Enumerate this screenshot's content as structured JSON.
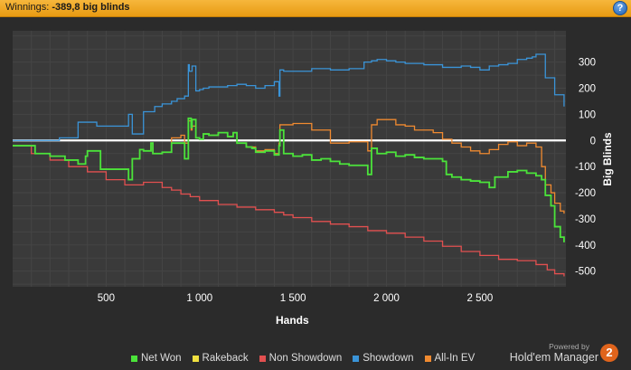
{
  "header": {
    "label": "Winnings:",
    "value": "-389,8 big blinds",
    "help_icon": "question-mark-icon"
  },
  "chart_data": {
    "type": "line",
    "xlabel": "Hands",
    "ylabel": "Big Blinds",
    "xlim": [
      0,
      2960
    ],
    "ylim": [
      -560,
      420
    ],
    "x_ticks": [
      500,
      1000,
      1500,
      2000,
      2500
    ],
    "x_tick_labels": [
      "500",
      "1 000",
      "1 500",
      "2 000",
      "2 500"
    ],
    "y_ticks": [
      300,
      200,
      100,
      0,
      -100,
      -200,
      -300,
      -400,
      -500
    ],
    "y_tick_labels": [
      "300",
      "200",
      "100",
      "0",
      "-100",
      "-200",
      "-300",
      "-400",
      "-500"
    ],
    "grid": true,
    "legend_position": "bottom",
    "series": [
      {
        "name": "Net Won",
        "color": "#4be33a",
        "x": [
          0,
          120,
          200,
          280,
          350,
          390,
          400,
          470,
          620,
          640,
          680,
          700,
          740,
          750,
          800,
          850,
          900,
          920,
          940,
          955,
          960,
          980,
          1000,
          1020,
          1050,
          1100,
          1150,
          1180,
          1200,
          1250,
          1280,
          1300,
          1350,
          1400,
          1425,
          1430,
          1450,
          1500,
          1550,
          1600,
          1650,
          1700,
          1750,
          1800,
          1850,
          1900,
          1920,
          1950,
          2000,
          2050,
          2100,
          2150,
          2200,
          2250,
          2300,
          2320,
          2350,
          2400,
          2450,
          2500,
          2550,
          2580,
          2600,
          2650,
          2700,
          2750,
          2800,
          2830,
          2850,
          2880,
          2900,
          2930,
          2950
        ],
        "y": [
          -20,
          -50,
          -60,
          -75,
          -90,
          -60,
          -40,
          -110,
          -150,
          -70,
          -35,
          -40,
          -10,
          -50,
          -45,
          -10,
          -10,
          -70,
          85,
          50,
          80,
          10,
          5,
          25,
          20,
          30,
          15,
          30,
          -10,
          -25,
          -30,
          -45,
          -40,
          -55,
          -20,
          40,
          -50,
          -60,
          -55,
          -75,
          -70,
          -80,
          -90,
          -95,
          -95,
          -130,
          -30,
          -50,
          -45,
          -60,
          -55,
          -65,
          -70,
          -70,
          -80,
          -130,
          -140,
          -150,
          -155,
          -160,
          -180,
          -140,
          -140,
          -120,
          -115,
          -125,
          -135,
          -150,
          -210,
          -250,
          -330,
          -370,
          -390
        ]
      },
      {
        "name": "Rakeback",
        "color": "#f0e040",
        "x": [
          0,
          2950
        ],
        "y": [
          0,
          0
        ]
      },
      {
        "name": "Non Showdown",
        "color": "#e25050",
        "x": [
          0,
          100,
          200,
          300,
          400,
          500,
          600,
          700,
          800,
          850,
          900,
          950,
          1000,
          1100,
          1200,
          1300,
          1400,
          1450,
          1500,
          1600,
          1700,
          1800,
          1900,
          2000,
          2100,
          2200,
          2300,
          2400,
          2500,
          2600,
          2700,
          2800,
          2860,
          2900,
          2950
        ],
        "y": [
          -20,
          -50,
          -75,
          -100,
          -120,
          -150,
          -170,
          -160,
          -180,
          -190,
          -205,
          -215,
          -230,
          -245,
          -255,
          -265,
          -275,
          -285,
          -295,
          -310,
          -320,
          -330,
          -345,
          -355,
          -370,
          -385,
          -405,
          -425,
          -440,
          -455,
          -460,
          -475,
          -495,
          -510,
          -520
        ]
      },
      {
        "name": "Showdown",
        "color": "#3a94d8",
        "x": [
          0,
          200,
          250,
          350,
          450,
          620,
          640,
          700,
          760,
          800,
          850,
          880,
          920,
          940,
          945,
          960,
          980,
          1000,
          1020,
          1050,
          1100,
          1150,
          1200,
          1250,
          1300,
          1350,
          1400,
          1425,
          1430,
          1450,
          1500,
          1600,
          1700,
          1800,
          1880,
          1920,
          1950,
          2000,
          2050,
          2100,
          2200,
          2300,
          2400,
          2450,
          2500,
          2550,
          2600,
          2650,
          2700,
          2750,
          2780,
          2800,
          2850,
          2900,
          2950
        ],
        "y": [
          0,
          0,
          10,
          70,
          55,
          100,
          25,
          110,
          130,
          140,
          150,
          160,
          170,
          290,
          265,
          285,
          190,
          195,
          200,
          205,
          205,
          210,
          215,
          210,
          200,
          210,
          225,
          170,
          270,
          265,
          265,
          275,
          270,
          275,
          300,
          305,
          310,
          305,
          300,
          295,
          290,
          280,
          285,
          280,
          270,
          285,
          290,
          295,
          310,
          315,
          320,
          330,
          240,
          175,
          130
        ]
      },
      {
        "name": "All-In EV",
        "color": "#f08a30",
        "x": [
          0,
          120,
          200,
          280,
          350,
          390,
          400,
          470,
          620,
          640,
          680,
          700,
          740,
          750,
          800,
          850,
          900,
          920,
          940,
          955,
          960,
          980,
          1000,
          1020,
          1050,
          1100,
          1150,
          1180,
          1200,
          1250,
          1300,
          1350,
          1400,
          1425,
          1430,
          1450,
          1500,
          1600,
          1700,
          1800,
          1900,
          1920,
          1950,
          2000,
          2050,
          2100,
          2150,
          2200,
          2250,
          2300,
          2350,
          2400,
          2450,
          2500,
          2550,
          2600,
          2650,
          2700,
          2750,
          2800,
          2830,
          2850,
          2880,
          2900,
          2930,
          2950
        ],
        "y": [
          -20,
          -50,
          -60,
          -75,
          -90,
          -60,
          -40,
          -110,
          -150,
          -70,
          -35,
          -40,
          -10,
          -50,
          -45,
          10,
          20,
          -10,
          75,
          40,
          55,
          10,
          5,
          25,
          20,
          30,
          15,
          30,
          -10,
          -25,
          -40,
          -35,
          -50,
          -10,
          60,
          60,
          65,
          40,
          -10,
          -5,
          -40,
          60,
          80,
          80,
          60,
          55,
          40,
          40,
          30,
          5,
          -10,
          -25,
          -40,
          -50,
          -35,
          -15,
          -5,
          -20,
          -10,
          -25,
          -100,
          -170,
          -200,
          -240,
          -270,
          -280
        ]
      }
    ]
  },
  "legend": [
    {
      "label": "Net Won",
      "color": "#4be33a"
    },
    {
      "label": "Rakeback",
      "color": "#f0e040"
    },
    {
      "label": "Non Showdown",
      "color": "#e25050"
    },
    {
      "label": "Showdown",
      "color": "#3a94d8"
    },
    {
      "label": "All-In EV",
      "color": "#f08a30"
    }
  ],
  "brand": {
    "powered_by": "Powered by",
    "name": "Hold'em Manager",
    "logo_text": "2"
  }
}
